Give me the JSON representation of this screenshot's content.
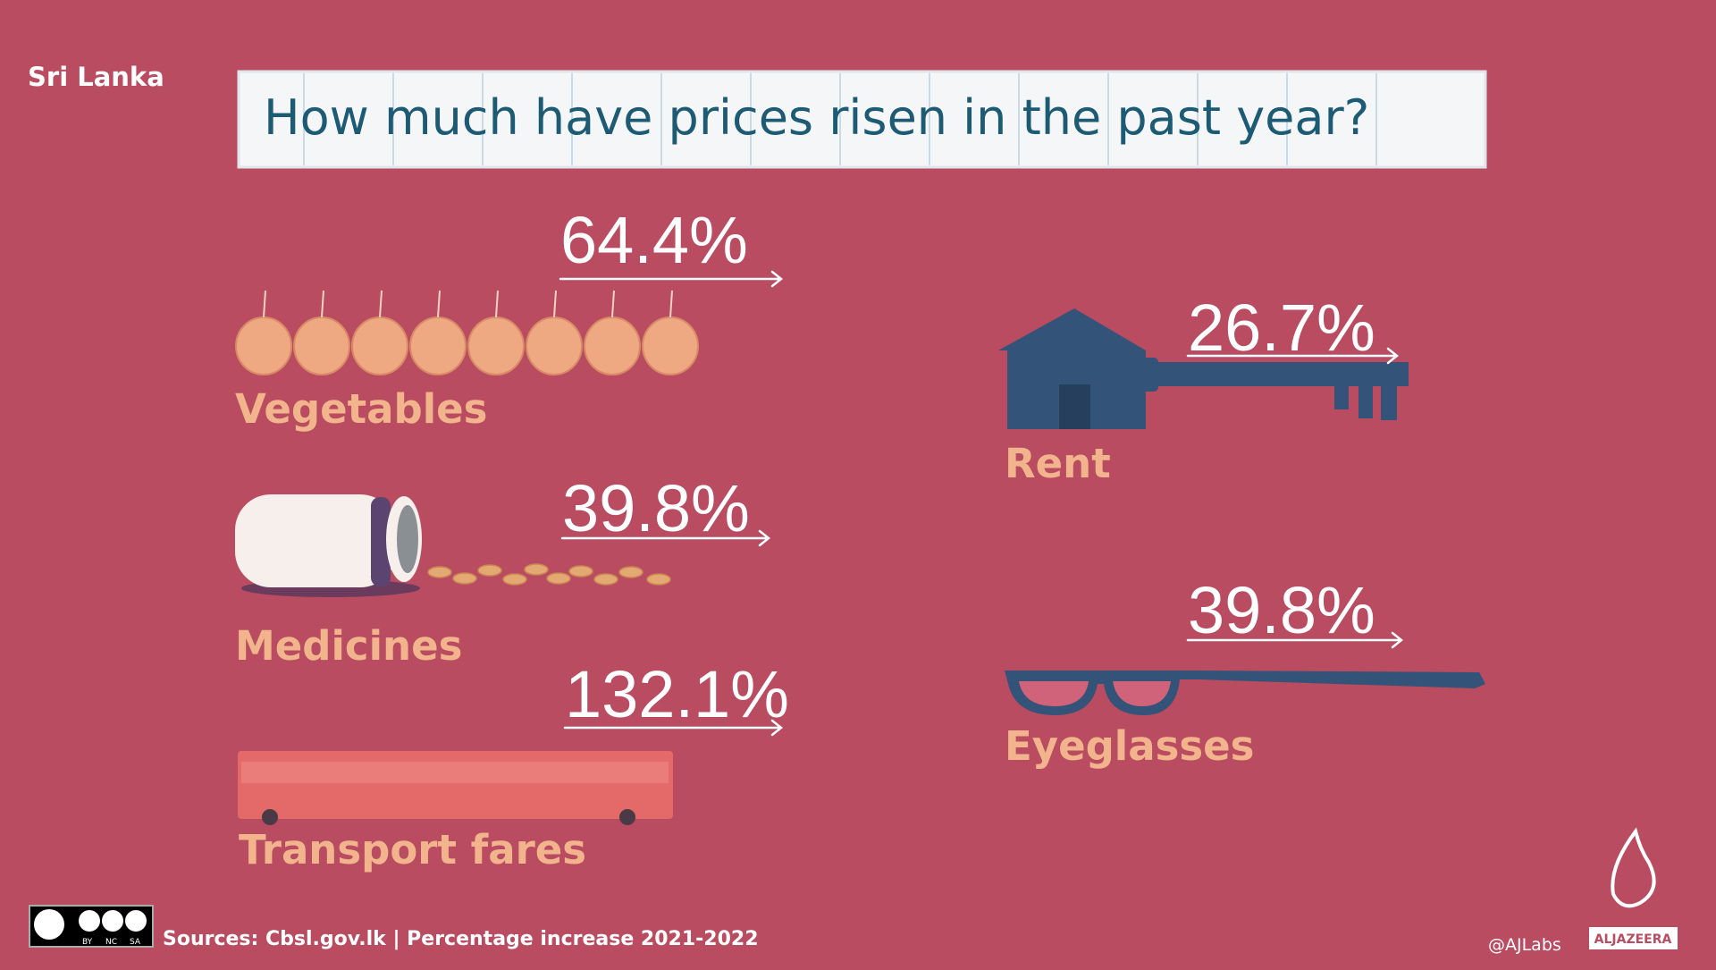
{
  "header": {
    "region": "Sri Lanka",
    "title": "How much have prices risen in the past year?"
  },
  "items": [
    {
      "label": "Vegetables",
      "value": "64.4%"
    },
    {
      "label": "Rent",
      "value": "26.7%"
    },
    {
      "label": "Medicines",
      "value": "39.8%"
    },
    {
      "label": "Eyeglasses",
      "value": "39.8%"
    },
    {
      "label": "Transport fares",
      "value": "132.1%"
    }
  ],
  "footer": {
    "license": [
      "BY",
      "NC",
      "SA"
    ],
    "sources": "Sources: Cbsl.gov.lk | Percentage increase 2021-2022",
    "handle": "@AJLabs",
    "logo": "ALJAZEERA"
  }
}
